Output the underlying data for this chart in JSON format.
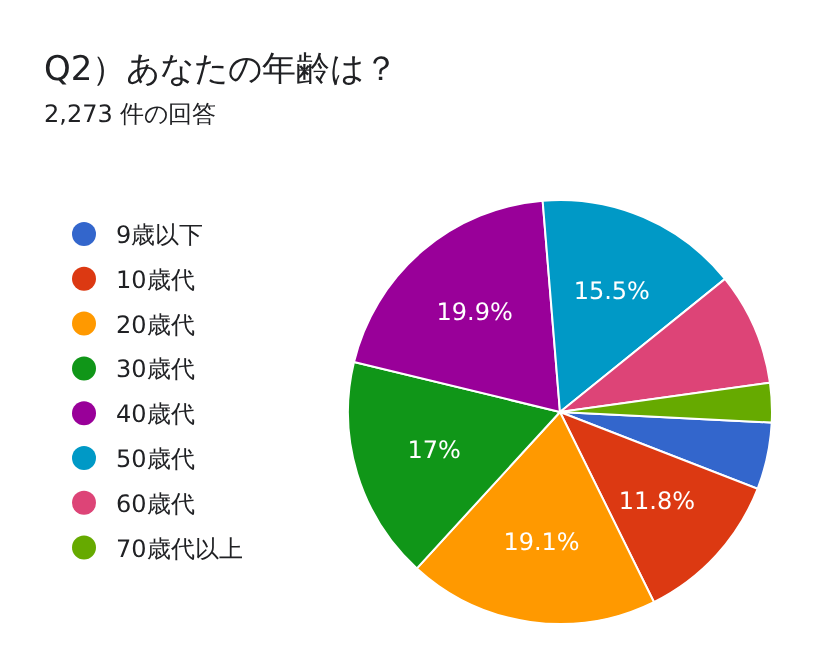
{
  "chart_data": {
    "type": "pie",
    "title": "Q2）あなたの年齢は？",
    "subtitle": "2,273 件の回答",
    "categories": [
      "9歳以下",
      "10歳代",
      "20歳代",
      "30歳代",
      "40歳代",
      "50歳代",
      "60歳代",
      "70歳代以上"
    ],
    "values": [
      5.1,
      11.8,
      19.1,
      17,
      19.9,
      15.5,
      8.6,
      3.0
    ],
    "colors": [
      "#3366cc",
      "#dc3912",
      "#ff9900",
      "#109618",
      "#990099",
      "#0099c6",
      "#dd4477",
      "#66aa00"
    ],
    "value_labels": [
      null,
      "11.8%",
      "19.1%",
      "17%",
      "19.9%",
      "15.5%",
      null,
      null
    ],
    "legend": "left"
  }
}
